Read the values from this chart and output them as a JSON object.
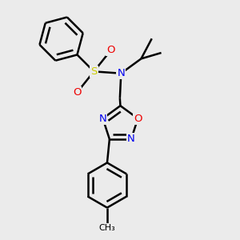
{
  "background_color": "#ebebeb",
  "atom_colors": {
    "C": "#000000",
    "N": "#0000ee",
    "O": "#ee0000",
    "S": "#cccc00",
    "H": "#000000"
  },
  "bond_color": "#000000",
  "line_width": 1.8,
  "figsize": [
    3.0,
    3.0
  ],
  "dpi": 100
}
